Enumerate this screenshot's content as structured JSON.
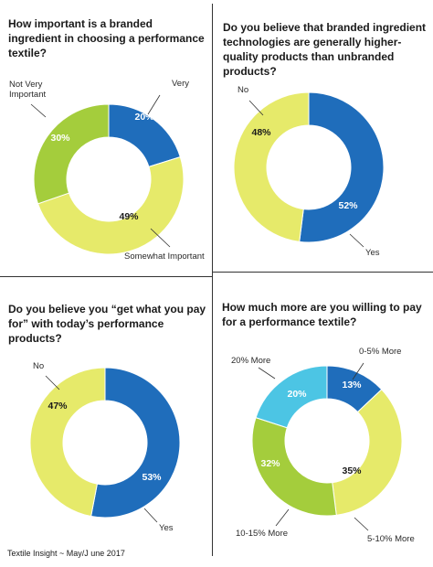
{
  "footer": "Textile Insight ~ May/J une 2017",
  "colors": {
    "blue": "#1f6dbb",
    "yellow": "#e6ea6a",
    "green": "#a4cd3c",
    "cyan": "#4cc5e4"
  },
  "chart_data": [
    {
      "type": "pie",
      "title": "How important is a branded ingredient in choosing a performance textile?",
      "slices": [
        {
          "label": "Very",
          "value": 20,
          "text": "20%",
          "color": "#1f6dbb"
        },
        {
          "label": "Somewhat Important",
          "value": 49,
          "text": "49%",
          "color": "#e6ea6a"
        },
        {
          "label": "Not Very Important",
          "value": 30,
          "text": "30%",
          "color": "#a4cd3c"
        }
      ]
    },
    {
      "type": "pie",
      "title": "Do you believe that branded ingredient technologies are generally higher-quality products than unbranded products?",
      "slices": [
        {
          "label": "Yes",
          "value": 52,
          "text": "52%",
          "color": "#1f6dbb"
        },
        {
          "label": "No",
          "value": 48,
          "text": "48%",
          "color": "#e6ea6a"
        }
      ]
    },
    {
      "type": "pie",
      "title": "Do you believe you “get what you pay for” with today’s performance products?",
      "slices": [
        {
          "label": "Yes",
          "value": 53,
          "text": "53%",
          "color": "#1f6dbb"
        },
        {
          "label": "No",
          "value": 47,
          "text": "47%",
          "color": "#e6ea6a"
        }
      ]
    },
    {
      "type": "pie",
      "title": "How much more are you willing to pay for a performance textile?",
      "slices": [
        {
          "label": "0-5% More",
          "value": 13,
          "text": "13%",
          "color": "#1f6dbb"
        },
        {
          "label": "5-10% More",
          "value": 35,
          "text": "35%",
          "color": "#e6ea6a"
        },
        {
          "label": "10-15% More",
          "value": 32,
          "text": "32%",
          "color": "#a4cd3c"
        },
        {
          "label": "20% More",
          "value": 20,
          "text": "20%",
          "color": "#4cc5e4"
        }
      ]
    }
  ]
}
